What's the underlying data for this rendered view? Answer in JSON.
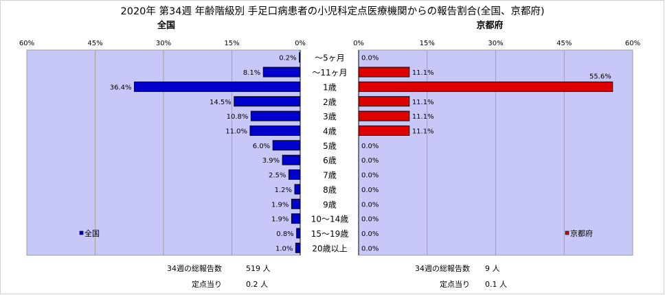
{
  "title": "2020年 第34週 年齢階級別 手足口病患者の小児科定点医療機関からの報告割合(全国、京都府)",
  "chart_data": {
    "type": "bar",
    "orientation": "horizontal-butterfly",
    "categories": [
      "～5ヶ月",
      "～11ヶ月",
      "1歳",
      "2歳",
      "3歳",
      "4歳",
      "5歳",
      "6歳",
      "7歳",
      "8歳",
      "9歳",
      "10～14歳",
      "15～19歳",
      "20歳以上"
    ],
    "panels": [
      {
        "side": "left",
        "heading": "全国",
        "legend": "全国",
        "color": "#0000cc",
        "xlim": [
          60,
          0
        ],
        "ticks": [
          "60%",
          "45%",
          "30%",
          "15%",
          "0%"
        ],
        "values": [
          0.2,
          8.1,
          36.4,
          14.5,
          10.8,
          11.0,
          6.0,
          3.9,
          2.5,
          1.2,
          1.9,
          1.9,
          0.8,
          1.0
        ],
        "labels": [
          "0.2%",
          "8.1%",
          "36.4%",
          "14.5%",
          "10.8%",
          "11.0%",
          "6.0%",
          "3.9%",
          "2.5%",
          "1.2%",
          "1.9%",
          "1.9%",
          "0.8%",
          "1.0%"
        ],
        "summary": [
          {
            "label": "34週の総報告数",
            "value": "519 人"
          },
          {
            "label": "定点当り",
            "value": "0.2 人"
          }
        ]
      },
      {
        "side": "right",
        "heading": "京都府",
        "legend": "京都府",
        "color": "#dd0000",
        "xlim": [
          0,
          60
        ],
        "ticks": [
          "0%",
          "15%",
          "30%",
          "45%",
          "60%"
        ],
        "values": [
          0.0,
          11.1,
          55.6,
          11.1,
          11.1,
          11.1,
          0.0,
          0.0,
          0.0,
          0.0,
          0.0,
          0.0,
          0.0,
          0.0
        ],
        "labels": [
          "0.0%",
          "11.1%",
          "55.6%",
          "11.1%",
          "11.1%",
          "11.1%",
          "0.0%",
          "0.0%",
          "0.0%",
          "0.0%",
          "0.0%",
          "0.0%",
          "0.0%",
          "0.0%"
        ],
        "summary": [
          {
            "label": "34週の総報告数",
            "value": "9 人"
          },
          {
            "label": "定点当り",
            "value": "0.1 人"
          }
        ]
      }
    ],
    "grid": true,
    "legend_position": "bottom-left / bottom-right"
  }
}
